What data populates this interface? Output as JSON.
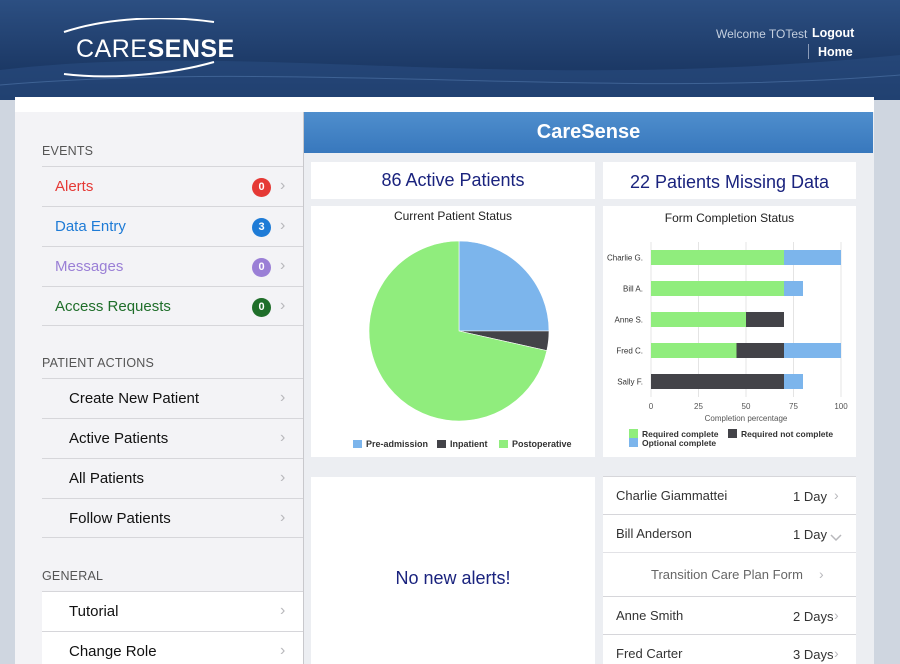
{
  "header": {
    "logo": {
      "part1": "CARE",
      "part2": "SENSE"
    },
    "welcome": "Welcome TOTest",
    "logout": "Logout",
    "home": "Home"
  },
  "sidebar": {
    "events_heading": "EVENTS",
    "events": [
      {
        "label": "Alerts",
        "count": "0",
        "color": "#e53935",
        "badge": "#e53935"
      },
      {
        "label": "Data Entry",
        "count": "3",
        "color": "#1e7bd6",
        "badge": "#1e7bd6"
      },
      {
        "label": "Messages",
        "count": "0",
        "color": "#9a7fd6",
        "badge": "#9a7fd6"
      },
      {
        "label": "Access Requests",
        "count": "0",
        "color": "#1f6e2a",
        "badge": "#1f6e2a"
      }
    ],
    "patient_heading": "PATIENT ACTIONS",
    "patient_actions": [
      "Create New Patient",
      "Active Patients",
      "All Patients",
      "Follow Patients"
    ],
    "general_heading": "GENERAL",
    "general": [
      "Tutorial",
      "Change Role"
    ]
  },
  "main": {
    "banner": "CareSense",
    "active_patients": "86 Active Patients",
    "missing_data": "22 Patients Missing Data",
    "no_alerts": "No new alerts!",
    "patients": [
      {
        "name": "Charlie Giammattei",
        "days": "1 Day",
        "chevron": "right"
      },
      {
        "name": "Bill Anderson",
        "days": "1 Day",
        "chevron": "down"
      },
      {
        "name": "Transition Care Plan Form",
        "days": "",
        "chevron": "right",
        "sub": true
      },
      {
        "name": "Anne Smith",
        "days": "2 Days",
        "chevron": "right"
      },
      {
        "name": "Fred Carter",
        "days": "3 Days",
        "chevron": "right"
      }
    ]
  },
  "chart_data": [
    {
      "type": "pie",
      "title": "Current Patient Status",
      "labels": [
        "Pre-admission",
        "Inpatient",
        "Postoperative"
      ],
      "values": [
        25,
        3.5,
        71.5
      ],
      "colors": [
        "#7cb5ec",
        "#434348",
        "#90ed7d"
      ],
      "legend": "bottom"
    },
    {
      "type": "bar",
      "orientation": "horizontal",
      "stacked": true,
      "title": "Form Completion Status",
      "categories": [
        "Charlie G.",
        "Bill A.",
        "Anne S.",
        "Fred C.",
        "Sally F."
      ],
      "series": [
        {
          "name": "Required complete",
          "color": "#90ed7d",
          "values": [
            70,
            70,
            50,
            45,
            0
          ]
        },
        {
          "name": "Required not complete",
          "color": "#434348",
          "values": [
            0,
            0,
            20,
            25,
            70
          ]
        },
        {
          "name": "Optional complete",
          "color": "#7cb5ec",
          "values": [
            30,
            10,
            0,
            30,
            10
          ]
        }
      ],
      "xlabel": "Completion percentage",
      "xlim": [
        0,
        100
      ],
      "xticks": [
        "0",
        "25",
        "50",
        "75",
        "100"
      ],
      "legend": "bottom"
    }
  ]
}
